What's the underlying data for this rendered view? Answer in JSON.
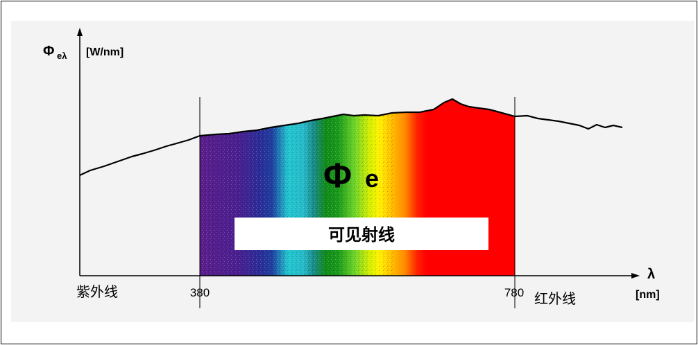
{
  "y_axis": {
    "symbol": "Φ",
    "subscript": "eλ",
    "unit": "[W/nm]"
  },
  "x_axis": {
    "symbol": "λ",
    "unit": "[nm]",
    "ticks": [
      "380",
      "780"
    ]
  },
  "regions": {
    "uv": "紫外线",
    "visible": "可见射线",
    "ir": "红外线"
  },
  "flux_label": {
    "symbol": "Φ",
    "subscript": "e"
  },
  "spectrum_colors": [
    "#5b1e8c",
    "#3d1f8e",
    "#1f3fa0",
    "#22c7cf",
    "#1a8c8c",
    "#118a1a",
    "#6bd22a",
    "#fff200",
    "#ff8c00",
    "#ff0000"
  ],
  "colors": {
    "axis": "#000000",
    "background": "#f3f3f3",
    "label_box": "#ffffff"
  }
}
